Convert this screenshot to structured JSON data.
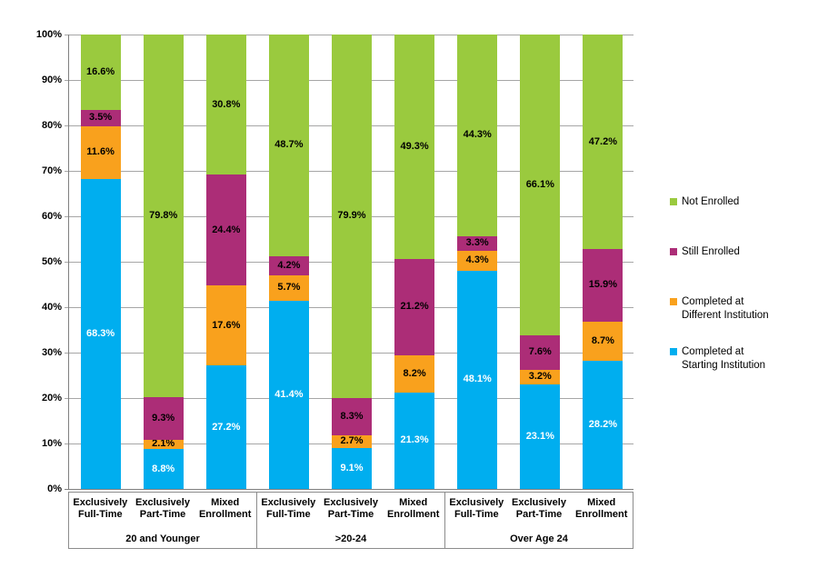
{
  "chart_data": {
    "type": "bar",
    "stacked": true,
    "title": "",
    "xlabel": "",
    "ylabel": "",
    "ylim": [
      0,
      100
    ],
    "grid": true,
    "legend_position": "right",
    "yticks": [
      "0%",
      "10%",
      "20%",
      "30%",
      "40%",
      "50%",
      "60%",
      "70%",
      "80%",
      "90%",
      "100%"
    ],
    "series": [
      {
        "name": "Completed at Starting Institution",
        "color": "#00AEEF",
        "label_color": "#FFFFFF"
      },
      {
        "name": "Completed at Different Institution",
        "color": "#F9A11D",
        "label_color": "#000000"
      },
      {
        "name": "Still Enrolled",
        "color": "#AC2D77",
        "label_color": "#000000"
      },
      {
        "name": "Not Enrolled",
        "color": "#9ACA3E",
        "label_color": "#000000"
      }
    ],
    "groups": [
      {
        "label": "20 and Younger",
        "bars": [
          {
            "category_lines": [
              "Exclusively",
              "Full-Time"
            ],
            "values": [
              68.3,
              11.6,
              3.5,
              16.6
            ]
          },
          {
            "category_lines": [
              "Exclusively",
              "Part-Time"
            ],
            "values": [
              8.8,
              2.1,
              9.3,
              79.8
            ]
          },
          {
            "category_lines": [
              "Mixed",
              "Enrollment"
            ],
            "values": [
              27.2,
              17.6,
              24.4,
              30.8
            ]
          }
        ]
      },
      {
        "label": ">20-24",
        "bars": [
          {
            "category_lines": [
              "Exclusively",
              "Full-Time"
            ],
            "values": [
              41.4,
              5.7,
              4.2,
              48.7
            ]
          },
          {
            "category_lines": [
              "Exclusively",
              "Part-Time"
            ],
            "values": [
              9.1,
              2.7,
              8.3,
              79.9
            ]
          },
          {
            "category_lines": [
              "Mixed",
              "Enrollment"
            ],
            "values": [
              21.3,
              8.2,
              21.2,
              49.3
            ]
          }
        ]
      },
      {
        "label": "Over Age 24",
        "bars": [
          {
            "category_lines": [
              "Exclusively",
              "Full-Time"
            ],
            "values": [
              48.1,
              4.3,
              3.3,
              44.3
            ]
          },
          {
            "category_lines": [
              "Exclusively",
              "Part-Time"
            ],
            "values": [
              23.1,
              3.2,
              7.6,
              66.1
            ]
          },
          {
            "category_lines": [
              "Mixed",
              "Enrollment"
            ],
            "values": [
              28.2,
              8.7,
              15.9,
              47.2
            ]
          }
        ]
      }
    ]
  },
  "legend": {
    "items": [
      {
        "lines": [
          "Not Enrolled"
        ],
        "color": "#9ACA3E"
      },
      {
        "lines": [
          "Still Enrolled"
        ],
        "color": "#AC2D77"
      },
      {
        "lines": [
          "Completed at",
          "Different Institution"
        ],
        "color": "#F9A11D"
      },
      {
        "lines": [
          "Completed at",
          "Starting Institution"
        ],
        "color": "#00AEEF"
      }
    ]
  },
  "colors": {
    "gridline": "#A6A6A6",
    "axis": "#808080",
    "box_border": "#8C8C8C",
    "background": "#FFFFFF"
  }
}
